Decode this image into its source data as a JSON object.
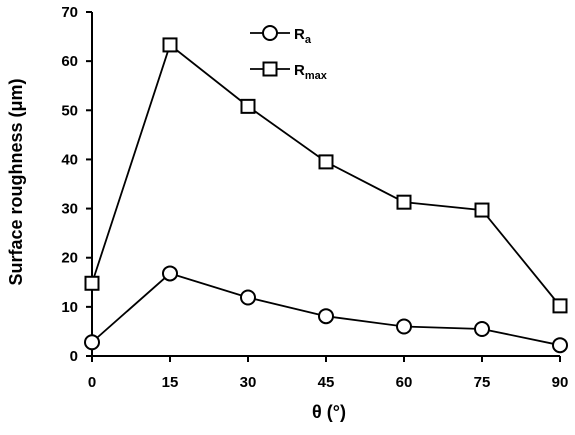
{
  "chart_data": {
    "type": "line",
    "x": [
      0,
      15,
      30,
      45,
      60,
      75,
      90
    ],
    "xlabel": "θ (°)",
    "ylabel": "Surface roughness (μm)",
    "xlim": [
      0,
      90
    ],
    "ylim": [
      0,
      70
    ],
    "xticks": [
      "0",
      "15",
      "30",
      "45",
      "60",
      "75",
      "90"
    ],
    "yticks": [
      "0",
      "10",
      "20",
      "30",
      "40",
      "50",
      "60",
      "70"
    ],
    "grid": false,
    "legend_position": "top-center",
    "series": [
      {
        "name": "Ra",
        "label_main": "R",
        "label_sub": "a",
        "marker": "circle",
        "color": "#000000",
        "values": [
          2.8,
          16.8,
          11.9,
          8.1,
          6.0,
          5.5,
          2.2
        ]
      },
      {
        "name": "Rmax",
        "label_main": "R",
        "label_sub": "max",
        "marker": "square",
        "color": "#000000",
        "values": [
          14.8,
          63.3,
          50.8,
          39.5,
          31.3,
          29.7,
          10.2
        ]
      }
    ]
  }
}
